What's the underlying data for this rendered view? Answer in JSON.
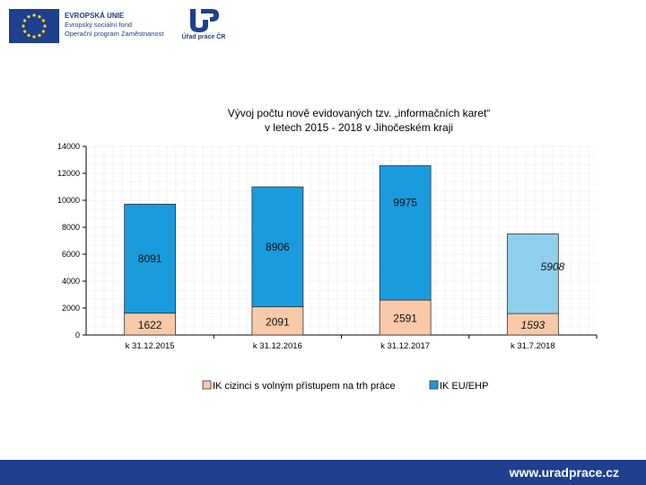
{
  "header": {
    "eu_lines": [
      "EVROPSKÁ UNIE",
      "Evropský sociální fond",
      "Operační program Zaměstnanost"
    ],
    "agency_label": "Úřad práce ČR"
  },
  "footer": {
    "url": "www.uradprace.cz"
  },
  "colors": {
    "eu_blue": "#1f3f8f",
    "eu_star": "#ffdd00",
    "series_cizinci": "#f9c9a8",
    "series_eu": "#1a9bdd",
    "series_eu_last": "#8ecfee",
    "footer": "#1f3f8f"
  },
  "chart_data": {
    "type": "bar",
    "stacked": true,
    "title_lines": [
      "Vývoj počtu nově evidovaných tzv. „informačních karet“",
      "v letech 2015 - 2018 v Jihočeském kraji"
    ],
    "categories": [
      "k 31.12.2015",
      "k 31.12.2016",
      "k 31.12.2017",
      "k 31.7.2018"
    ],
    "series": [
      {
        "name": "IK cizinci s volným přístupem na trh práce",
        "values": [
          1622,
          2091,
          2591,
          1593
        ],
        "labels": [
          "1622",
          "2091",
          "2591",
          "1593"
        ]
      },
      {
        "name": "IK EU/EHP",
        "values": [
          8091,
          8906,
          9975,
          5908
        ],
        "labels": [
          "8091",
          "8906",
          "9975",
          "5908"
        ]
      }
    ],
    "ylim": [
      0,
      14000
    ],
    "yticks": [
      "0",
      "2000",
      "4000",
      "6000",
      "8000",
      "10000",
      "12000",
      "14000"
    ],
    "grid": true,
    "legend_position": "bottom"
  }
}
